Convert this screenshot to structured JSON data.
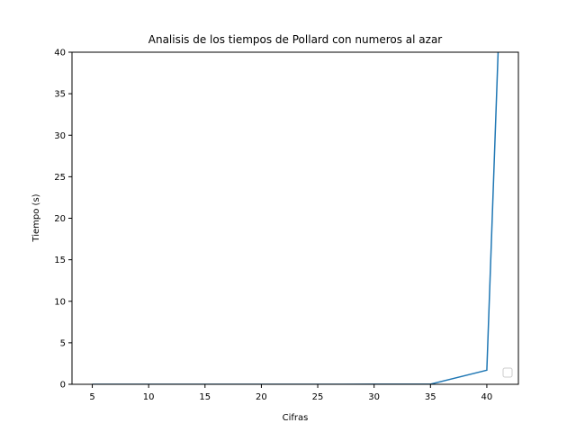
{
  "chart_data": {
    "type": "line",
    "title": "Analisis de los tiempos de Pollard con numeros al azar",
    "xlabel": "Cifras",
    "ylabel": "Tiempo (s)",
    "xlim": [
      3.2,
      42.8
    ],
    "ylim": [
      0,
      40
    ],
    "xticks": [
      5,
      10,
      15,
      20,
      25,
      30,
      35,
      40
    ],
    "yticks": [
      0,
      5,
      10,
      15,
      20,
      25,
      30,
      35,
      40
    ],
    "grid": false,
    "legend": "lower-right",
    "series": [
      {
        "color": "#1f77b4",
        "x": [
          5,
          10,
          15,
          20,
          25,
          30,
          35,
          40,
          41
        ],
        "y": [
          0.0,
          0.0,
          0.0,
          0.0,
          0.0,
          0.01,
          0.02,
          1.7,
          40.0
        ]
      }
    ]
  }
}
